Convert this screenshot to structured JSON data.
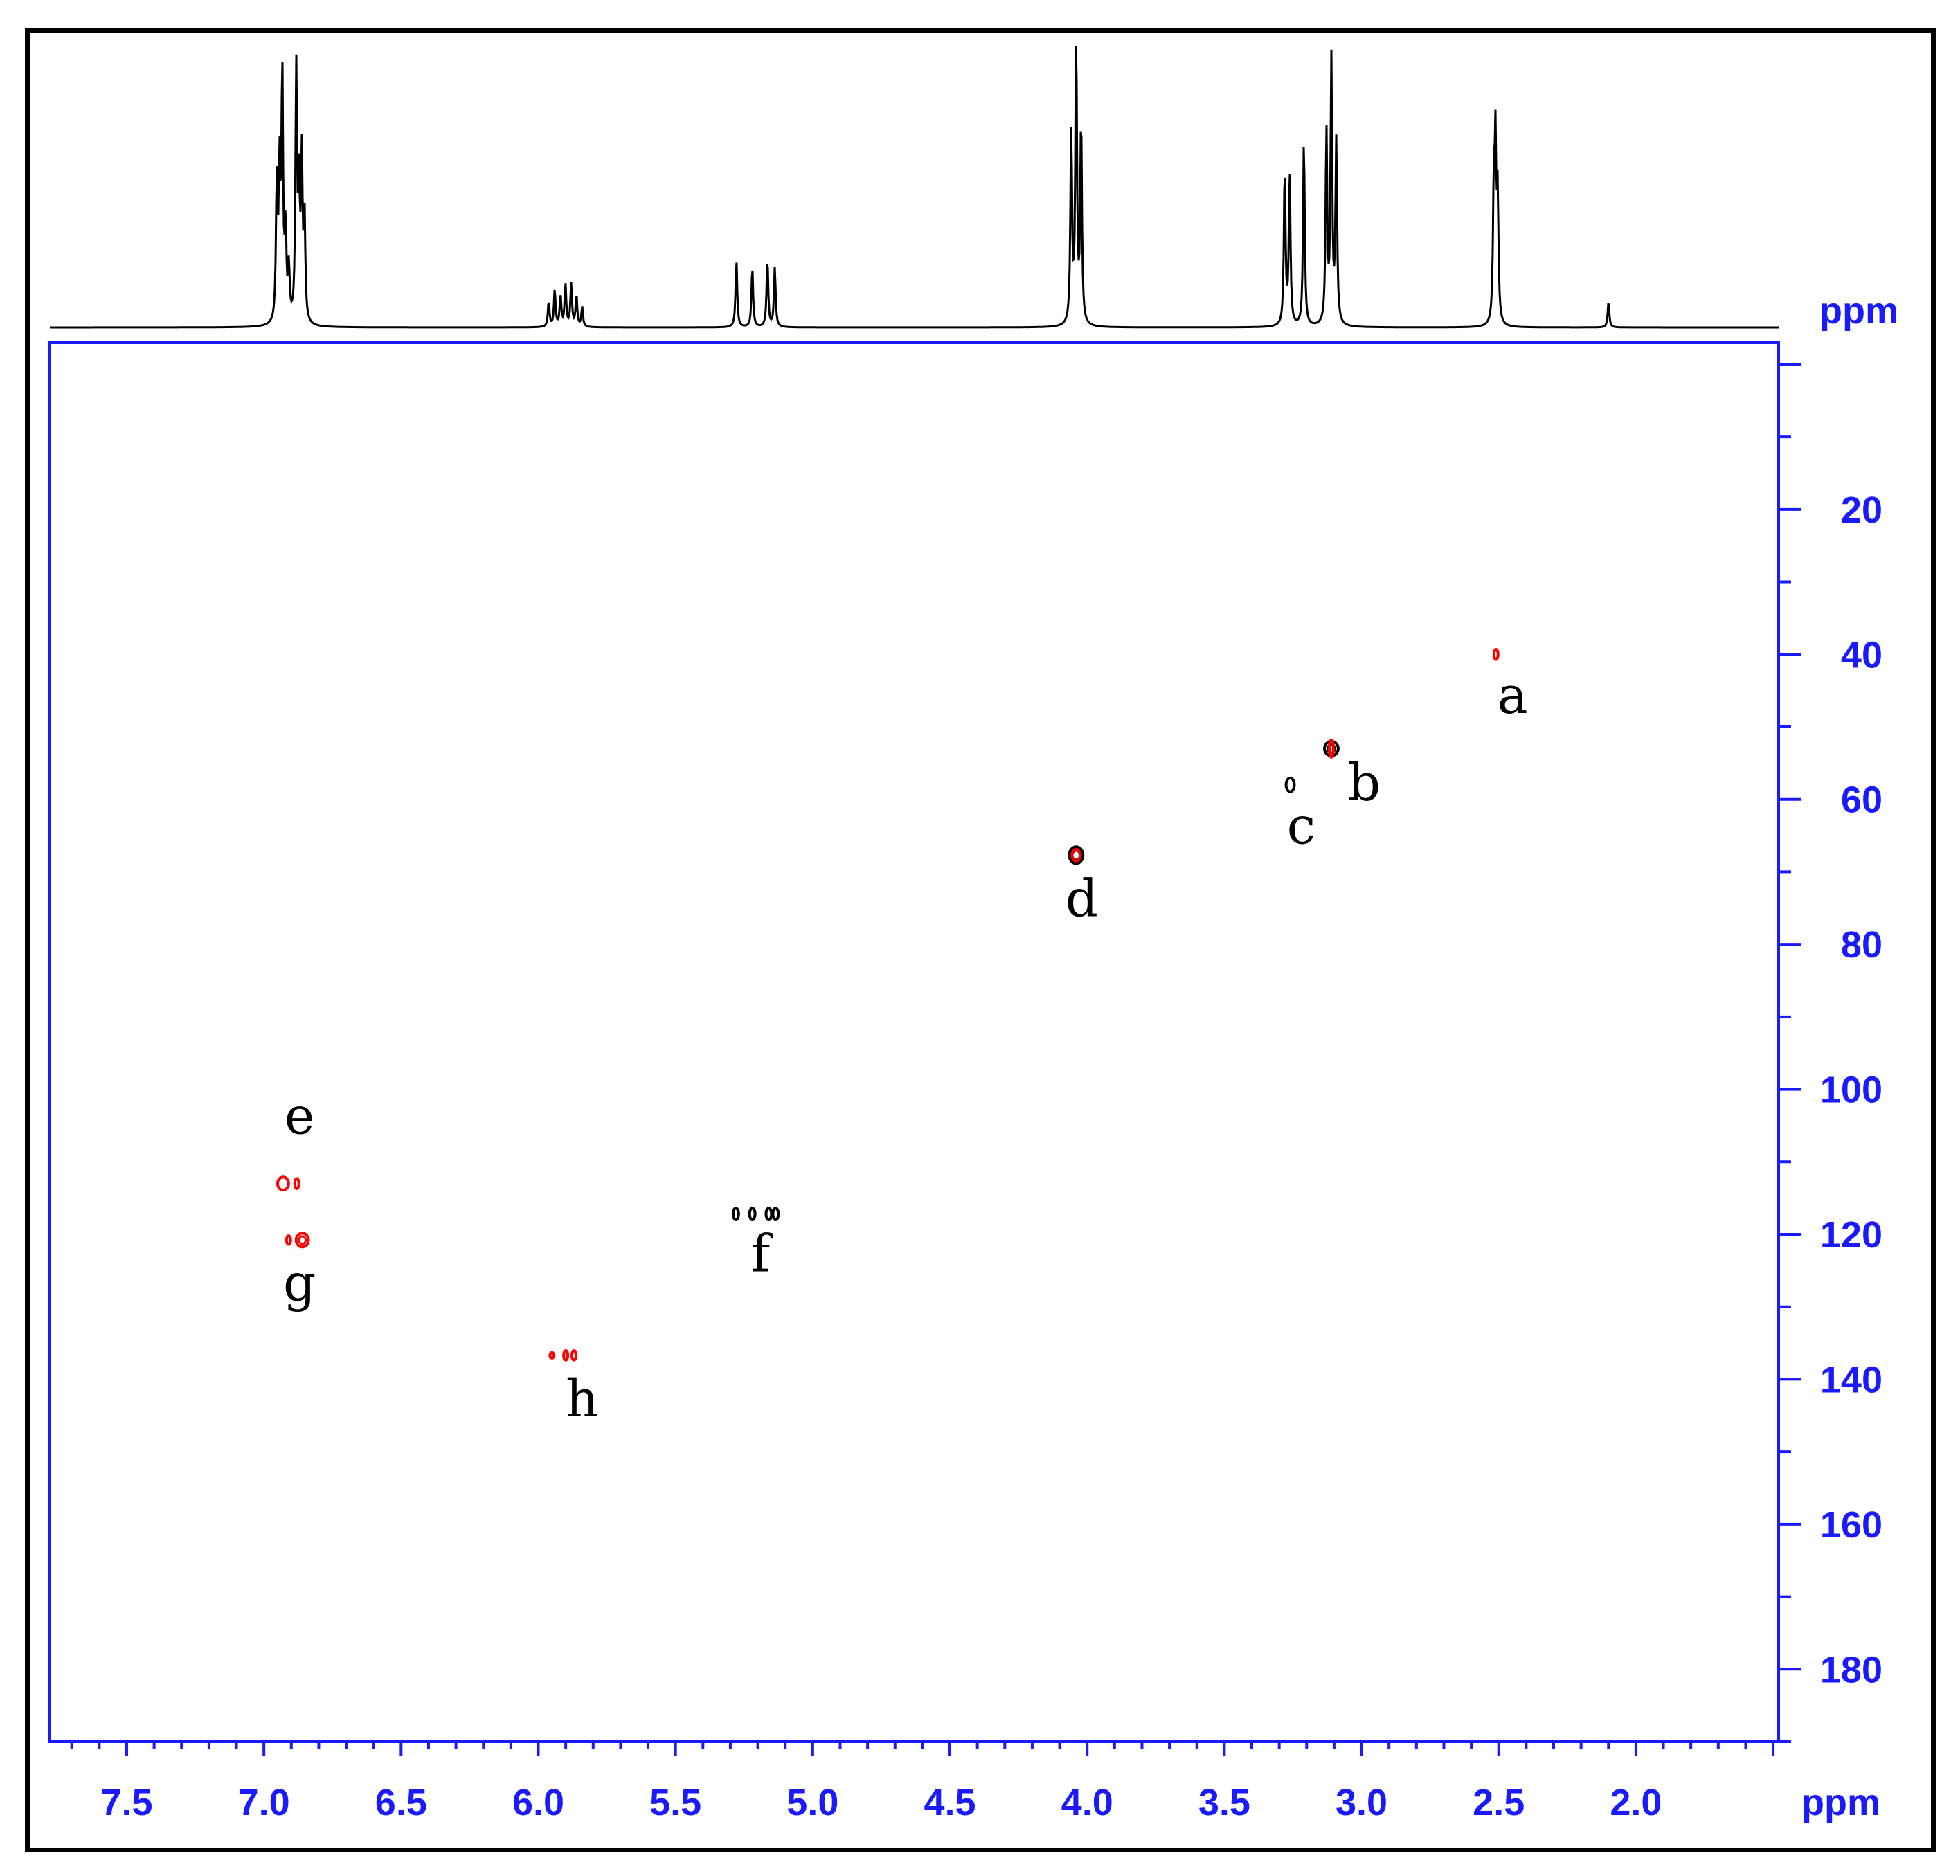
{
  "chart_data": {
    "type": "heatmap",
    "description_text": "",
    "axis_color": "#1a1aff",
    "f2_axis": {
      "unit": "ppm",
      "ticks": [
        "7.5",
        "7.0",
        "6.5",
        "6.0",
        "5.5",
        "5.0",
        "4.5",
        "4.0",
        "3.5",
        "3.0",
        "2.5",
        "2.0"
      ],
      "range": [
        7.78,
        1.48
      ],
      "minor_step": 0.1,
      "reversed": true
    },
    "f1_axis": {
      "unit": "ppm",
      "ticks": [
        "20",
        "40",
        "60",
        "80",
        "100",
        "120",
        "140",
        "160",
        "180"
      ],
      "range": [
        -3,
        190
      ],
      "minor_step": 10,
      "reversed": true
    },
    "projection_1d": {
      "color": "#000000",
      "peaks": [
        {
          "ppm": 6.953,
          "h": 0.48
        },
        {
          "ppm": 6.943,
          "h": 0.52
        },
        {
          "ppm": 6.933,
          "h": 0.87
        },
        {
          "ppm": 6.921,
          "h": 0.32
        },
        {
          "ppm": 6.909,
          "h": 0.18
        },
        {
          "ppm": 6.882,
          "h": 0.88
        },
        {
          "ppm": 6.872,
          "h": 0.44
        },
        {
          "ppm": 6.862,
          "h": 0.57
        },
        {
          "ppm": 6.852,
          "h": 0.36
        },
        {
          "ppm": 5.962,
          "h": 0.09
        },
        {
          "ppm": 5.94,
          "h": 0.13
        },
        {
          "ppm": 5.919,
          "h": 0.11
        },
        {
          "ppm": 5.901,
          "h": 0.15
        },
        {
          "ppm": 5.88,
          "h": 0.15
        },
        {
          "ppm": 5.861,
          "h": 0.11
        },
        {
          "ppm": 5.84,
          "h": 0.07
        },
        {
          "ppm": 5.278,
          "h": 0.24
        },
        {
          "ppm": 5.22,
          "h": 0.21
        },
        {
          "ppm": 5.165,
          "h": 0.24
        },
        {
          "ppm": 5.138,
          "h": 0.21
        },
        {
          "ppm": 4.058,
          "h": 0.68
        },
        {
          "ppm": 4.04,
          "h": 1.0
        },
        {
          "ppm": 4.022,
          "h": 0.72
        },
        {
          "ppm": 3.28,
          "h": 0.55
        },
        {
          "ppm": 3.262,
          "h": 0.54
        },
        {
          "ppm": 3.21,
          "h": 0.66
        },
        {
          "ppm": 3.128,
          "h": 0.68
        },
        {
          "ppm": 3.11,
          "h": 0.93
        },
        {
          "ppm": 3.092,
          "h": 0.64
        },
        {
          "ppm": 2.518,
          "h": 0.43
        },
        {
          "ppm": 2.512,
          "h": 0.59
        },
        {
          "ppm": 2.504,
          "h": 0.43
        },
        {
          "ppm": 2.1,
          "h": 0.09
        }
      ]
    },
    "cross_peaks": [
      {
        "label": "a",
        "h": 2.51,
        "c": 40.0,
        "color": "#ff0000",
        "width_ppm": 0.01,
        "height_ppm": 1.4
      },
      {
        "label": "b",
        "h": 3.11,
        "c": 53.0,
        "color": "#000000",
        "width_ppm": 0.05,
        "height_ppm": 2.0
      },
      {
        "label": "b",
        "h": 3.11,
        "c": 53.0,
        "color": "#ff0000",
        "width_ppm": 0.015,
        "height_ppm": 2.4
      },
      {
        "label": "c",
        "h": 3.26,
        "c": 58.0,
        "color": "#000000",
        "width_ppm": 0.03,
        "height_ppm": 1.9
      },
      {
        "label": "d",
        "h": 4.04,
        "c": 67.7,
        "color": "#000000",
        "width_ppm": 0.05,
        "height_ppm": 2.3
      },
      {
        "label": "d",
        "h": 4.04,
        "c": 67.7,
        "color": "#ff0000",
        "width_ppm": 0.03,
        "height_ppm": 1.6
      },
      {
        "label": "e",
        "h": 6.93,
        "c": 113.0,
        "color": "#ff0000",
        "width_ppm": 0.04,
        "height_ppm": 1.8
      },
      {
        "label": "e",
        "h": 6.88,
        "c": 113.0,
        "color": "#ff0000",
        "width_ppm": 0.015,
        "height_ppm": 1.4
      },
      {
        "label": "g",
        "h": 6.91,
        "c": 120.8,
        "color": "#ff0000",
        "width_ppm": 0.01,
        "height_ppm": 1.2
      },
      {
        "label": "g",
        "h": 6.86,
        "c": 120.8,
        "color": "#ff0000",
        "width_ppm": 0.045,
        "height_ppm": 1.9
      },
      {
        "label": "f",
        "h": 5.28,
        "c": 117.2,
        "color": "#000000",
        "width_ppm": 0.02,
        "height_ppm": 1.6
      },
      {
        "label": "f",
        "h": 5.22,
        "c": 117.2,
        "color": "#000000",
        "width_ppm": 0.02,
        "height_ppm": 1.6
      },
      {
        "label": "f",
        "h": 5.16,
        "c": 117.2,
        "color": "#000000",
        "width_ppm": 0.02,
        "height_ppm": 1.6
      },
      {
        "label": "f",
        "h": 5.135,
        "c": 117.2,
        "color": "#000000",
        "width_ppm": 0.02,
        "height_ppm": 1.6
      },
      {
        "label": "h",
        "h": 5.95,
        "c": 136.7,
        "color": "#ff0000",
        "width_ppm": 0.01,
        "height_ppm": 0.7
      },
      {
        "label": "h",
        "h": 5.9,
        "c": 136.7,
        "color": "#ff0000",
        "width_ppm": 0.015,
        "height_ppm": 1.3
      },
      {
        "label": "h",
        "h": 5.87,
        "c": 136.7,
        "color": "#ff0000",
        "width_ppm": 0.015,
        "height_ppm": 1.3
      }
    ],
    "peak_labels": [
      {
        "text": "a",
        "h": 2.45,
        "c": 46.0
      },
      {
        "text": "b",
        "h": 2.99,
        "c": 58.0
      },
      {
        "text": "c",
        "h": 3.22,
        "c": 64.0
      },
      {
        "text": "d",
        "h": 4.02,
        "c": 74.0
      },
      {
        "text": "e",
        "h": 6.87,
        "c": 104.0
      },
      {
        "text": "f",
        "h": 5.19,
        "c": 123.0
      },
      {
        "text": "g",
        "h": 6.87,
        "c": 127.0
      },
      {
        "text": "h",
        "h": 5.84,
        "c": 143.0
      }
    ],
    "grid": false
  }
}
